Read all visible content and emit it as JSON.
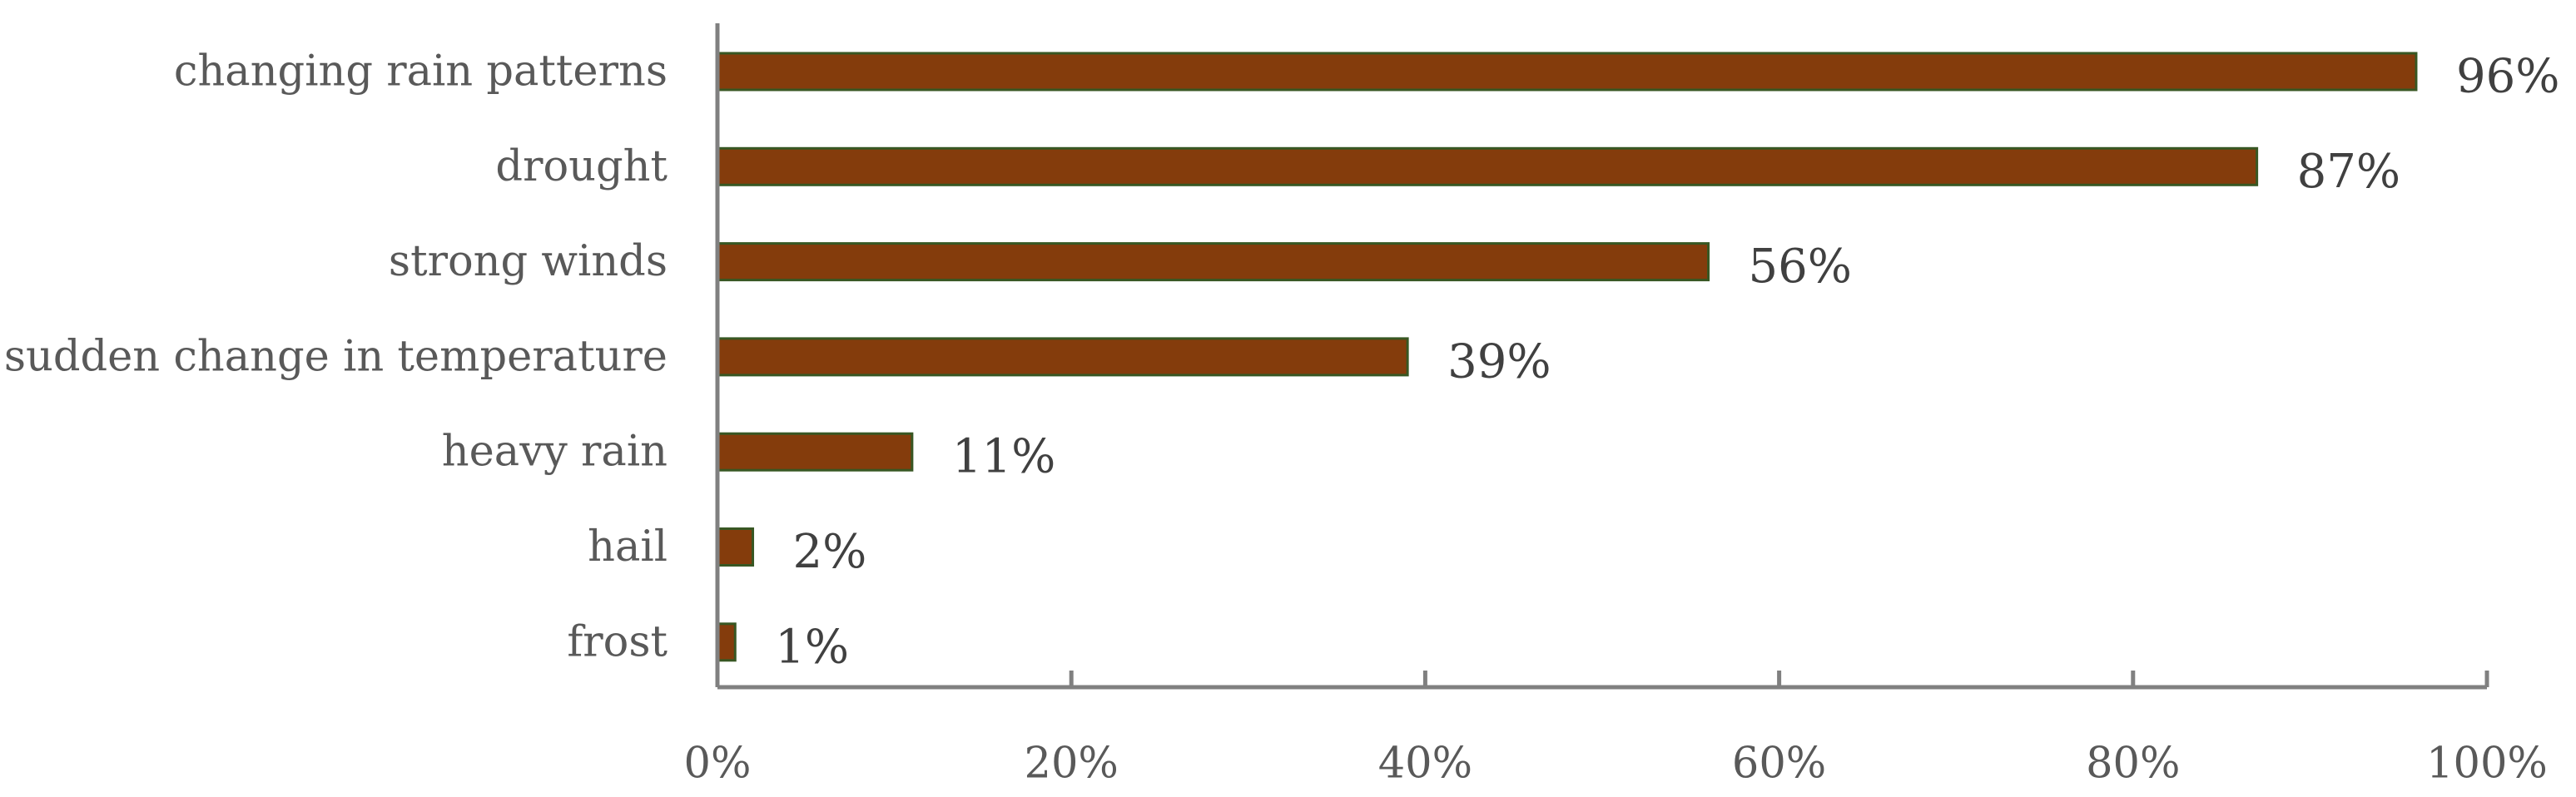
{
  "chart_data": {
    "type": "bar",
    "orientation": "horizontal",
    "categories": [
      "changing rain patterns",
      "drought",
      "strong winds",
      "sudden change in temperature",
      "heavy rain",
      "hail",
      "frost"
    ],
    "values": [
      96,
      87,
      56,
      39,
      11,
      2,
      1
    ],
    "data_labels": [
      "96%",
      "87%",
      "56%",
      "39%",
      "11%",
      "2%",
      "1%"
    ],
    "x_ticks": [
      "0%",
      "20%",
      "40%",
      "60%",
      "80%",
      "100%"
    ],
    "xlim": [
      0,
      100
    ],
    "title": "",
    "xlabel": "",
    "ylabel": "",
    "grid": false,
    "legend": "none",
    "colors": {
      "bar_fill": "#843C0C",
      "bar_edge": "#385723",
      "axis": "#808080",
      "category_text": "#595959",
      "label_text": "#404040"
    }
  }
}
